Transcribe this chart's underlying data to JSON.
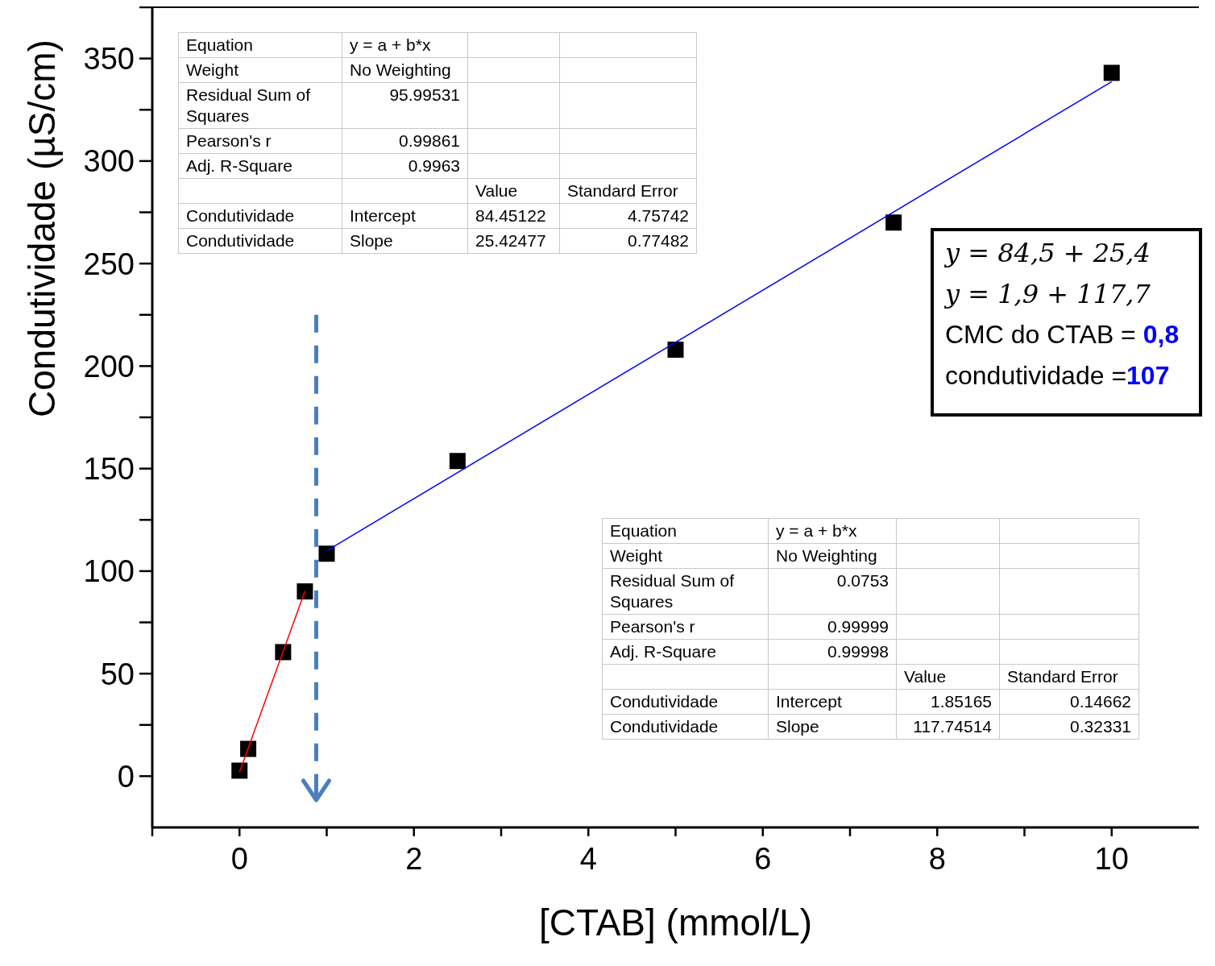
{
  "chart_data": {
    "type": "scatter",
    "xlabel": "[CTAB] (mmol/L)",
    "ylabel": "Condutividade (µS/cm)",
    "xlim": [
      -1,
      11
    ],
    "ylim": [
      -25,
      375
    ],
    "xticks": [
      {
        "value": -1,
        "label": null
      },
      0,
      {
        "value": 1,
        "label": null
      },
      2,
      {
        "value": 3,
        "label": null
      },
      4,
      {
        "value": 5,
        "label": null
      },
      6,
      {
        "value": 7,
        "label": null
      },
      8,
      {
        "value": 9,
        "label": null
      },
      10
    ],
    "yticks": [
      0,
      {
        "value": 25,
        "label": null
      },
      50,
      {
        "value": 75,
        "label": null
      },
      100,
      {
        "value": 125,
        "label": null
      },
      150,
      {
        "value": 175,
        "label": null
      },
      200,
      {
        "value": 225,
        "label": null
      },
      250,
      {
        "value": 275,
        "label": null
      },
      300,
      {
        "value": 325,
        "label": null
      },
      350,
      {
        "value": 375,
        "label": null
      }
    ],
    "marker": "square",
    "series": [
      {
        "color": "#000000",
        "x": [
          0,
          0.1,
          0.5,
          0.75,
          1,
          2.5,
          5,
          7.5,
          10
        ],
        "values": [
          2.7,
          13.3,
          60.5,
          90.1,
          108.5,
          153.7,
          208,
          270,
          343
        ]
      },
      {
        "type": "line",
        "marker": "none",
        "color": "#ff0000",
        "x": [
          0,
          0.75
        ],
        "values": [
          1.9,
          90.2
        ]
      },
      {
        "type": "line",
        "marker": "none",
        "color": "#0000ff",
        "x": [
          1,
          10
        ],
        "values": [
          109.9,
          338.7
        ]
      }
    ],
    "ref_lines": [
      {
        "axis": "x",
        "value": 0.88,
        "color": "#4a7ebf",
        "line_style": "dashed"
      }
    ],
    "annotations": [
      "Equation",
      "y = a + b*x",
      "Weight",
      "No Weighting",
      "Residual Sum of Squares",
      "95.99531",
      "Pearson's r",
      "0.99861",
      "Adj. R-Square",
      "0.9963",
      "Value",
      "Standard Error",
      "Condutividade",
      "Intercept",
      "84.45122",
      "4.75742",
      "Condutividade",
      "Slope",
      "25.42477",
      "0.77482",
      "Equation",
      "y = a + b*x",
      "Weight",
      "No Weighting",
      "Residual Sum of Squares",
      "0.0753",
      "Pearson's r",
      "0.99999",
      "Adj. R-Square",
      "0.99998",
      "Value",
      "Standard Error",
      "Condutividade",
      "Intercept",
      "1.85165",
      "0.14662",
      "Condutividade",
      "Slope",
      "117.74514",
      "0.32331",
      "y = 84,5 + 25,4",
      "y = 1,9 + 117,7",
      "CMC do CTAB = ",
      "0,8",
      "condutividade =",
      "107"
    ]
  }
}
